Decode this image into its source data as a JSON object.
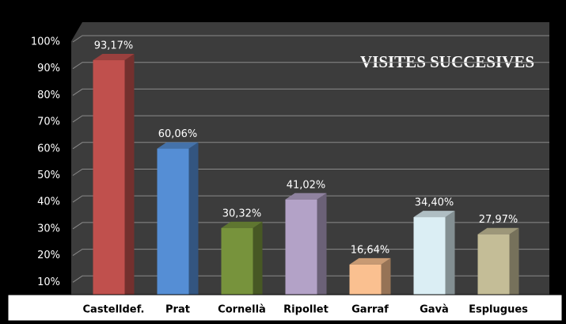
{
  "chart_data": {
    "type": "bar3d",
    "title": "VISITES SUCCESIVES",
    "categories": [
      "Castelldef.",
      "Prat",
      "Cornellà",
      "Ripollet",
      "Garraf",
      "Gavà",
      "Esplugues"
    ],
    "values": [
      93.17,
      60.06,
      30.32,
      41.02,
      16.64,
      34.4,
      27.97
    ],
    "value_labels": [
      "93,17%",
      "60,06%",
      "30,32%",
      "41,02%",
      "16,64%",
      "34,40%",
      "27,97%"
    ],
    "colors": [
      "#c0504d",
      "#558ed5",
      "#77933c",
      "#b3a2c7",
      "#fac090",
      "#dbeef4",
      "#c4bd97"
    ],
    "ylim": [
      0,
      100
    ],
    "yticks": [
      {
        "value": 10,
        "label": "10%"
      },
      {
        "value": 20,
        "label": "20%"
      },
      {
        "value": 30,
        "label": "30%"
      },
      {
        "value": 40,
        "label": "40%"
      },
      {
        "value": 50,
        "label": "50%"
      },
      {
        "value": 60,
        "label": "60%"
      },
      {
        "value": 70,
        "label": "70%"
      },
      {
        "value": 80,
        "label": "80%"
      },
      {
        "value": 90,
        "label": "90%"
      },
      {
        "value": 100,
        "label": "100%"
      }
    ],
    "grid": true
  }
}
